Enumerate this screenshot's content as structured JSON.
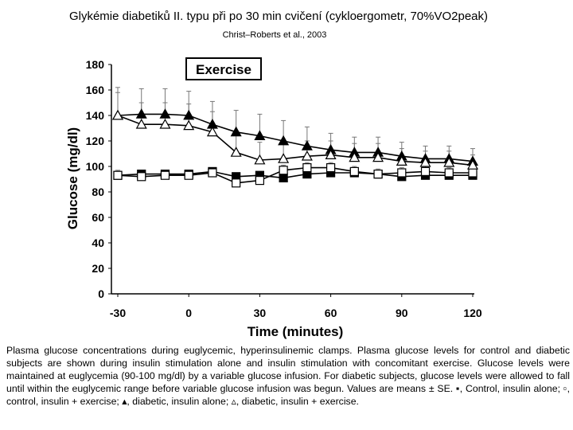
{
  "header": {
    "title": "Glykémie diabetiků II. typu při po 30 min cvičení (cykloergometr, 70%VO2peak)",
    "subtitle": "Christ–Roberts et al., 2003"
  },
  "caption": "Plasma glucose concentrations during euglycemic, hyperinsulinemic clamps. Plasma glucose levels for control and diabetic subjects are shown during insulin stimulation alone and insulin stimulation with concomitant exercise. Glucose levels were maintained at euglycemia (90-100 mg/dl) by a variable glucose infusion. For diabetic subjects, glucose levels were allowed to fall until within the euglycemic range before variable glucose infusion was begun. Values are means ± SE. ▪, Control, insulin alone; ▫, control, insulin + exercise; ▴, diabetic, insulin alone; ▵, diabetic, insulin + exercise.",
  "chart_data": {
    "type": "line",
    "annotation": "Exercise",
    "xlabel": "Time (minutes)",
    "ylabel": "Glucose (mg/dl)",
    "xlim": [
      -30,
      120
    ],
    "ylim": [
      0,
      180
    ],
    "xticks": [
      -30,
      0,
      30,
      60,
      90,
      120
    ],
    "yticks": [
      0,
      20,
      40,
      60,
      80,
      100,
      120,
      140,
      160,
      180
    ],
    "x": [
      -30,
      -20,
      -10,
      0,
      10,
      20,
      30,
      40,
      50,
      60,
      70,
      80,
      90,
      100,
      110,
      120
    ],
    "series": [
      {
        "marker": "filled-square",
        "color": "#000000",
        "values": [
          93,
          94,
          94,
          94,
          96,
          92,
          93,
          91,
          94,
          95,
          95,
          94,
          92,
          93,
          93,
          93
        ]
      },
      {
        "marker": "open-square",
        "color": "#000000",
        "values": [
          93,
          92,
          93,
          93,
          95,
          87,
          89,
          97,
          99,
          99,
          96,
          94,
          95,
          96,
          95,
          95
        ]
      },
      {
        "marker": "filled-triangle",
        "color": "#000000",
        "values": [
          140,
          141,
          141,
          140,
          133,
          127,
          124,
          120,
          116,
          113,
          111,
          111,
          108,
          106,
          106,
          104
        ]
      },
      {
        "marker": "open-triangle",
        "color": "#000000",
        "values": [
          140,
          133,
          133,
          132,
          127,
          111,
          105,
          106,
          108,
          109,
          107,
          107,
          104,
          103,
          103,
          101
        ]
      }
    ],
    "error_bars": [
      {
        "series": 2,
        "plus": [
          18,
          20,
          20,
          19,
          18,
          17,
          17,
          16,
          15,
          13,
          12,
          12,
          11,
          10,
          10,
          10
        ]
      },
      {
        "series": 3,
        "plus": [
          22,
          17,
          17,
          17,
          16,
          14,
          14,
          13,
          12,
          11,
          11,
          11,
          10,
          9,
          9,
          8
        ]
      },
      {
        "series": 1,
        "plus": [
          4,
          4,
          4,
          4,
          4,
          4,
          4,
          4,
          4,
          4,
          4,
          4,
          4,
          4,
          4,
          4
        ]
      }
    ]
  }
}
